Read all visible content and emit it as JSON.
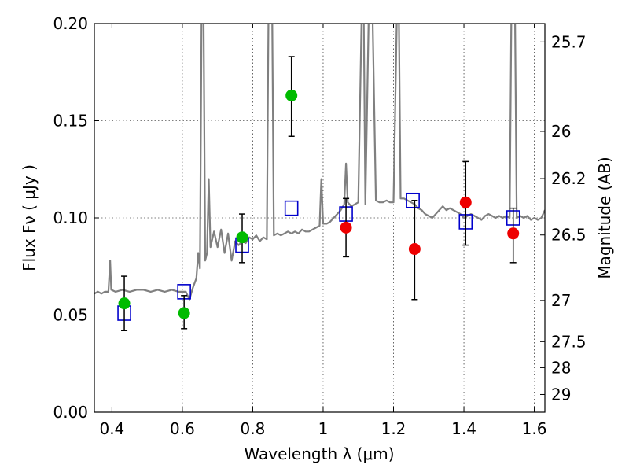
{
  "chart_data": {
    "type": "scatter",
    "xlabel": "Wavelength  λ (μm)",
    "ylabel": "Flux  Fν  ( μJy )",
    "ylabel_right": "Magnitude (AB)",
    "xlim": [
      0.35,
      1.63
    ],
    "ylim": [
      0.0,
      0.2
    ],
    "grid": true,
    "x_ticks": [
      {
        "value": 0.4,
        "label": "0.4"
      },
      {
        "value": 0.6,
        "label": "0.6"
      },
      {
        "value": 0.8,
        "label": "0.8"
      },
      {
        "value": 1.0,
        "label": "1"
      },
      {
        "value": 1.2,
        "label": "1.2"
      },
      {
        "value": 1.4,
        "label": "1.4"
      },
      {
        "value": 1.6,
        "label": "1.6"
      }
    ],
    "y_ticks": [
      {
        "value": 0.0,
        "label": "0.00"
      },
      {
        "value": 0.05,
        "label": "0.05"
      },
      {
        "value": 0.1,
        "label": "0.10"
      },
      {
        "value": 0.15,
        "label": "0.15"
      },
      {
        "value": 0.2,
        "label": "0.20"
      }
    ],
    "right_ticks": [
      {
        "value": 25.7,
        "label": "25.7"
      },
      {
        "value": 26.0,
        "label": "26"
      },
      {
        "value": 26.2,
        "label": "26.2"
      },
      {
        "value": 26.5,
        "label": "26.5"
      },
      {
        "value": 27.0,
        "label": "27"
      },
      {
        "value": 27.5,
        "label": "27.5"
      },
      {
        "value": 28.0,
        "label": "28"
      },
      {
        "value": 29.0,
        "label": "29"
      }
    ],
    "series": [
      {
        "kind": "line",
        "color": "#808080",
        "points": [
          [
            0.35,
            0.061
          ],
          [
            0.36,
            0.062
          ],
          [
            0.37,
            0.061
          ],
          [
            0.38,
            0.062
          ],
          [
            0.39,
            0.062
          ],
          [
            0.395,
            0.078
          ],
          [
            0.398,
            0.063
          ],
          [
            0.41,
            0.062
          ],
          [
            0.43,
            0.063
          ],
          [
            0.45,
            0.062
          ],
          [
            0.47,
            0.063
          ],
          [
            0.49,
            0.063
          ],
          [
            0.51,
            0.062
          ],
          [
            0.53,
            0.063
          ],
          [
            0.55,
            0.062
          ],
          [
            0.57,
            0.063
          ],
          [
            0.59,
            0.062
          ],
          [
            0.61,
            0.062
          ],
          [
            0.62,
            0.058
          ],
          [
            0.63,
            0.064
          ],
          [
            0.64,
            0.069
          ],
          [
            0.645,
            0.082
          ],
          [
            0.65,
            0.074
          ],
          [
            0.655,
            0.21
          ],
          [
            0.66,
            0.21
          ],
          [
            0.665,
            0.078
          ],
          [
            0.67,
            0.082
          ],
          [
            0.675,
            0.12
          ],
          [
            0.68,
            0.085
          ],
          [
            0.69,
            0.093
          ],
          [
            0.7,
            0.085
          ],
          [
            0.71,
            0.094
          ],
          [
            0.72,
            0.082
          ],
          [
            0.73,
            0.092
          ],
          [
            0.74,
            0.078
          ],
          [
            0.75,
            0.088
          ],
          [
            0.76,
            0.086
          ],
          [
            0.77,
            0.088
          ],
          [
            0.78,
            0.087
          ],
          [
            0.79,
            0.09
          ],
          [
            0.8,
            0.089
          ],
          [
            0.81,
            0.091
          ],
          [
            0.82,
            0.088
          ],
          [
            0.83,
            0.09
          ],
          [
            0.84,
            0.089
          ],
          [
            0.845,
            0.21
          ],
          [
            0.855,
            0.21
          ],
          [
            0.86,
            0.091
          ],
          [
            0.87,
            0.092
          ],
          [
            0.88,
            0.091
          ],
          [
            0.89,
            0.092
          ],
          [
            0.9,
            0.093
          ],
          [
            0.91,
            0.092
          ],
          [
            0.92,
            0.093
          ],
          [
            0.93,
            0.092
          ],
          [
            0.94,
            0.094
          ],
          [
            0.95,
            0.093
          ],
          [
            0.96,
            0.093
          ],
          [
            0.97,
            0.094
          ],
          [
            0.98,
            0.095
          ],
          [
            0.99,
            0.096
          ],
          [
            0.995,
            0.12
          ],
          [
            1.0,
            0.097
          ],
          [
            1.01,
            0.097
          ],
          [
            1.02,
            0.098
          ],
          [
            1.03,
            0.1
          ],
          [
            1.04,
            0.102
          ],
          [
            1.05,
            0.104
          ],
          [
            1.06,
            0.107
          ],
          [
            1.065,
            0.128
          ],
          [
            1.07,
            0.108
          ],
          [
            1.08,
            0.106
          ],
          [
            1.09,
            0.107
          ],
          [
            1.1,
            0.108
          ],
          [
            1.11,
            0.21
          ],
          [
            1.115,
            0.21
          ],
          [
            1.12,
            0.107
          ],
          [
            1.13,
            0.21
          ],
          [
            1.14,
            0.21
          ],
          [
            1.15,
            0.109
          ],
          [
            1.16,
            0.108
          ],
          [
            1.17,
            0.108
          ],
          [
            1.18,
            0.109
          ],
          [
            1.19,
            0.108
          ],
          [
            1.2,
            0.108
          ],
          [
            1.21,
            0.21
          ],
          [
            1.215,
            0.21
          ],
          [
            1.22,
            0.11
          ],
          [
            1.23,
            0.11
          ],
          [
            1.24,
            0.109
          ],
          [
            1.25,
            0.108
          ],
          [
            1.26,
            0.107
          ],
          [
            1.27,
            0.105
          ],
          [
            1.28,
            0.104
          ],
          [
            1.29,
            0.102
          ],
          [
            1.3,
            0.101
          ],
          [
            1.31,
            0.1
          ],
          [
            1.32,
            0.102
          ],
          [
            1.33,
            0.104
          ],
          [
            1.34,
            0.106
          ],
          [
            1.35,
            0.104
          ],
          [
            1.36,
            0.105
          ],
          [
            1.37,
            0.104
          ],
          [
            1.38,
            0.103
          ],
          [
            1.39,
            0.102
          ],
          [
            1.4,
            0.1
          ],
          [
            1.41,
            0.101
          ],
          [
            1.42,
            0.102
          ],
          [
            1.43,
            0.101
          ],
          [
            1.44,
            0.1
          ],
          [
            1.45,
            0.099
          ],
          [
            1.46,
            0.101
          ],
          [
            1.47,
            0.102
          ],
          [
            1.48,
            0.101
          ],
          [
            1.49,
            0.1
          ],
          [
            1.5,
            0.101
          ],
          [
            1.51,
            0.1
          ],
          [
            1.52,
            0.101
          ],
          [
            1.53,
            0.1
          ],
          [
            1.535,
            0.21
          ],
          [
            1.545,
            0.21
          ],
          [
            1.55,
            0.1
          ],
          [
            1.56,
            0.101
          ],
          [
            1.57,
            0.1
          ],
          [
            1.58,
            0.101
          ],
          [
            1.59,
            0.099
          ],
          [
            1.6,
            0.1
          ],
          [
            1.61,
            0.099
          ],
          [
            1.62,
            0.1
          ],
          [
            1.63,
            0.104
          ]
        ]
      },
      {
        "kind": "box",
        "color": "#0000cc",
        "points": [
          [
            0.435,
            0.051
          ],
          [
            0.605,
            0.062
          ],
          [
            0.77,
            0.086
          ],
          [
            0.91,
            0.105
          ],
          [
            1.065,
            0.102
          ],
          [
            1.255,
            0.109
          ],
          [
            1.405,
            0.098
          ],
          [
            1.54,
            0.1
          ]
        ]
      },
      {
        "kind": "dot",
        "color": "#00bb00",
        "points": [
          {
            "x": 0.435,
            "y": 0.056,
            "err": [
              0.042,
              0.07
            ]
          },
          {
            "x": 0.605,
            "y": 0.051,
            "err": [
              0.043,
              0.06
            ]
          },
          {
            "x": 0.77,
            "y": 0.09,
            "err": [
              0.077,
              0.102
            ]
          },
          {
            "x": 0.91,
            "y": 0.163,
            "err": [
              0.142,
              0.183
            ]
          }
        ]
      },
      {
        "kind": "dot",
        "color": "#ee0000",
        "points": [
          {
            "x": 1.065,
            "y": 0.095,
            "err": [
              0.08,
              0.11
            ]
          },
          {
            "x": 1.26,
            "y": 0.084,
            "err": [
              0.058,
              0.109
            ]
          },
          {
            "x": 1.405,
            "y": 0.108,
            "err": [
              0.086,
              0.129
            ]
          },
          {
            "x": 1.54,
            "y": 0.092,
            "err": [
              0.077,
              0.105
            ]
          }
        ]
      }
    ]
  }
}
